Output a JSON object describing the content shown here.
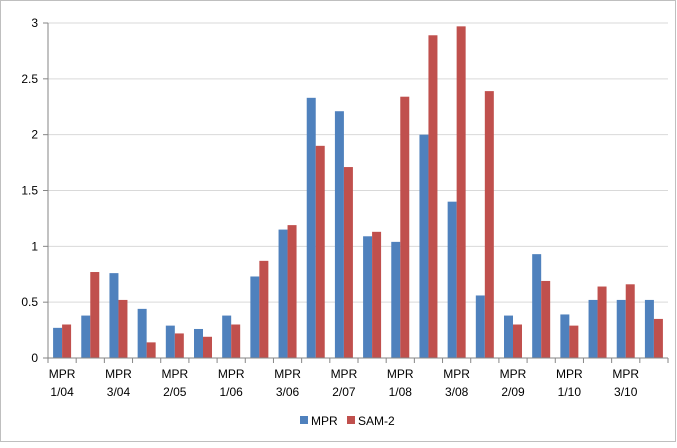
{
  "chart_data": {
    "type": "bar",
    "title": "",
    "xlabel": "",
    "ylabel": "",
    "ylim": [
      0,
      3
    ],
    "yticks": [
      "0",
      "0.5",
      "1",
      "1.5",
      "2",
      "2.5",
      "3"
    ],
    "grid": "horizontal",
    "legend_position": "bottom",
    "categories": [
      "MPR 1/04",
      "",
      "MPR 3/04",
      "",
      "MPR 2/05",
      "",
      "MPR 1/06",
      "",
      "MPR 3/06",
      "",
      "MPR 2/07",
      "",
      "MPR 1/08",
      "",
      "MPR 3/08",
      "",
      "MPR 2/09",
      "",
      "MPR 1/10",
      "",
      "MPR 3/10",
      ""
    ],
    "series": [
      {
        "name": "MPR",
        "color": "#4f81bd",
        "values": [
          0.27,
          0.38,
          0.76,
          0.44,
          0.29,
          0.26,
          0.38,
          0.73,
          1.15,
          2.33,
          2.21,
          1.09,
          1.04,
          2.0,
          1.4,
          0.56,
          0.38,
          0.93,
          0.39,
          0.52,
          0.52,
          0.52
        ]
      },
      {
        "name": "SAM-2",
        "color": "#c0504d",
        "values": [
          0.3,
          0.77,
          0.52,
          0.14,
          0.22,
          0.19,
          0.3,
          0.87,
          1.19,
          1.9,
          1.71,
          1.13,
          2.34,
          2.89,
          2.97,
          2.39,
          0.3,
          0.69,
          0.29,
          0.64,
          0.66,
          0.35
        ]
      }
    ]
  }
}
